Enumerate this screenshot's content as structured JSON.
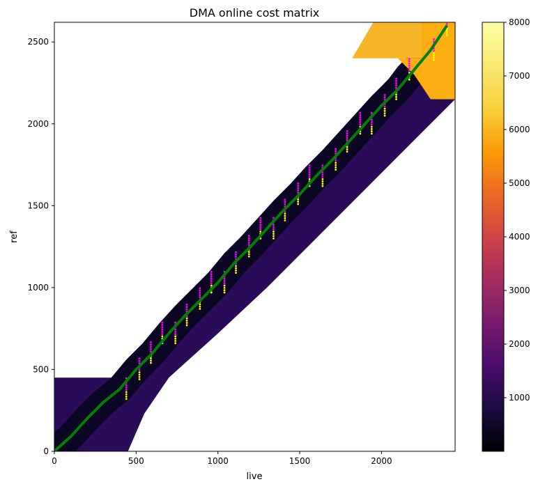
{
  "chart_data": {
    "type": "heatmap",
    "title": "DMA online cost matrix",
    "xlabel": "live",
    "ylabel": "ref",
    "xlim": [
      0,
      2450
    ],
    "ylim": [
      0,
      2620
    ],
    "x_ticks": [
      0,
      500,
      1000,
      1500,
      2000
    ],
    "y_ticks": [
      0,
      500,
      1000,
      1500,
      2000,
      2500
    ],
    "colormap": "inferno",
    "colorbar_range": [
      0,
      8000
    ],
    "colorbar_ticks": [
      1000,
      2000,
      3000,
      4000,
      5000,
      6000,
      7000,
      8000
    ],
    "background_color": "#ffffff",
    "computed_band": {
      "description_values": "band of computed cells around the diagonal (ref range per live range)",
      "regions": [
        {
          "live": [
            0,
            440
          ],
          "ref": [
            0,
            450
          ],
          "cost": 700
        },
        {
          "live": [
            440,
            1000
          ],
          "ref": [
            0,
            0
          ],
          "cost": 0
        }
      ]
    },
    "alignment_path": {
      "color": "#008000",
      "points": [
        [
          0,
          0
        ],
        [
          100,
          90
        ],
        [
          200,
          200
        ],
        [
          300,
          300
        ],
        [
          400,
          380
        ],
        [
          500,
          500
        ],
        [
          600,
          600
        ],
        [
          700,
          720
        ],
        [
          800,
          830
        ],
        [
          900,
          930
        ],
        [
          1000,
          1030
        ],
        [
          1100,
          1150
        ],
        [
          1200,
          1250
        ],
        [
          1300,
          1360
        ],
        [
          1400,
          1470
        ],
        [
          1500,
          1570
        ],
        [
          1600,
          1680
        ],
        [
          1700,
          1780
        ],
        [
          1800,
          1890
        ],
        [
          1900,
          2000
        ],
        [
          2000,
          2110
        ],
        [
          2100,
          2210
        ],
        [
          2200,
          2330
        ],
        [
          2300,
          2450
        ],
        [
          2400,
          2600
        ]
      ]
    },
    "candidate_columns": {
      "x": [
        440,
        520,
        590,
        660,
        740,
        810,
        890,
        960,
        1040,
        1110,
        1190,
        1260,
        1340,
        1410,
        1490,
        1560,
        1640,
        1720,
        1790,
        1870,
        1940,
        2020,
        2090,
        2170,
        2320,
        2400
      ],
      "marker_colors": [
        "#ff00ff",
        "#ffff00"
      ]
    },
    "colors": {
      "path": "#008000",
      "candidate_primary": "#ff00ff",
      "candidate_secondary": "#ffff00",
      "band_low": "#000004",
      "band_mid": "#3b0f70",
      "band_high": "#fcae12"
    }
  }
}
